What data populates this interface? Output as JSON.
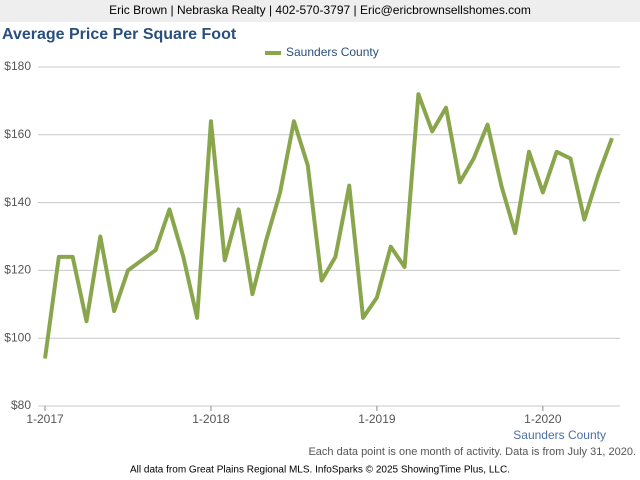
{
  "header": {
    "text": "Eric Brown | Nebraska Realty | 402-570-3797 | Eric@ericbrownsellshomes.com"
  },
  "chart_data": {
    "type": "line",
    "title": "Average Price Per Square Foot",
    "categories": [
      "1-2017",
      null,
      null,
      null,
      null,
      null,
      null,
      null,
      null,
      null,
      null,
      null,
      "1-2018",
      null,
      null,
      null,
      null,
      null,
      null,
      null,
      null,
      null,
      null,
      null,
      "1-2019",
      null,
      null,
      null,
      null,
      null,
      null,
      null,
      null,
      null,
      null,
      null,
      "1-2020",
      null,
      null,
      null,
      null,
      null
    ],
    "series": [
      {
        "name": "Saunders County",
        "color": "#8aa64c",
        "values": [
          94,
          124,
          124,
          105,
          130,
          108,
          120,
          123,
          126,
          138,
          124,
          106,
          164,
          123,
          138,
          113,
          129,
          143,
          164,
          151,
          117,
          124,
          145,
          106,
          112,
          127,
          121,
          172,
          161,
          168,
          146,
          153,
          163,
          145,
          131,
          155,
          143,
          155,
          153,
          135,
          148,
          159
        ]
      }
    ],
    "ylim": [
      80,
      180
    ],
    "yticks": [
      {
        "value": 80,
        "label": "$80"
      },
      {
        "value": 100,
        "label": "$100"
      },
      {
        "value": 120,
        "label": "$120"
      },
      {
        "value": 140,
        "label": "$140"
      },
      {
        "value": 160,
        "label": "$160"
      },
      {
        "value": 180,
        "label": "$180"
      }
    ],
    "grid": true,
    "x_label": "Saunders County",
    "note": "Each data point is one month of activity. Data is from July 31, 2020.",
    "source": "All data from Great Plains Regional MLS. InfoSparks © 2025 ShowingTime Plus, LLC."
  }
}
